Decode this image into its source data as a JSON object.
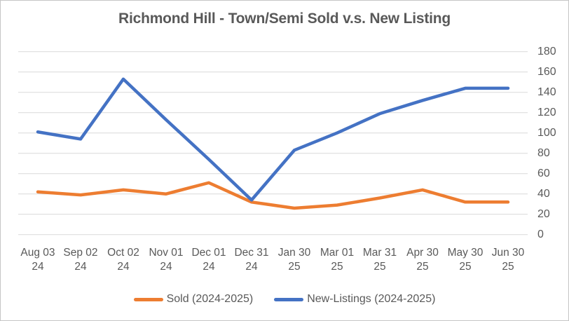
{
  "chart_data": {
    "type": "line",
    "title": "Richmond Hill - Town/Semi Sold v.s. New Listing",
    "categories": [
      "Aug 03 24",
      "Sep 02 24",
      "Oct 02 24",
      "Nov 01 24",
      "Dec 01 24",
      "Dec 31 24",
      "Jan 30 25",
      "Mar 01 25",
      "Mar 31 25",
      "Apr 30 25",
      "May 30 25",
      "Jun 30 25"
    ],
    "series": [
      {
        "name": "Sold (2024-2025)",
        "color": "#ED7D31",
        "values": [
          42,
          39,
          44,
          40,
          51,
          32,
          26,
          29,
          36,
          44,
          32,
          32
        ]
      },
      {
        "name": "New-Listings (2024-2025)",
        "color": "#4472C4",
        "values": [
          101,
          94,
          153,
          113,
          74,
          34,
          83,
          100,
          119,
          132,
          144,
          144
        ]
      }
    ],
    "ylim": [
      0,
      180
    ],
    "yticks": [
      0,
      20,
      40,
      60,
      80,
      100,
      120,
      140,
      160,
      180
    ],
    "y_axis_side": "right",
    "xlabel": "",
    "ylabel": "",
    "grid": "horizontal",
    "legend_position": "bottom",
    "colors": {
      "text": "#595959",
      "gridline": "#D9D9D9",
      "background": "#FFFFFF",
      "border": "#C6C6C6"
    }
  }
}
